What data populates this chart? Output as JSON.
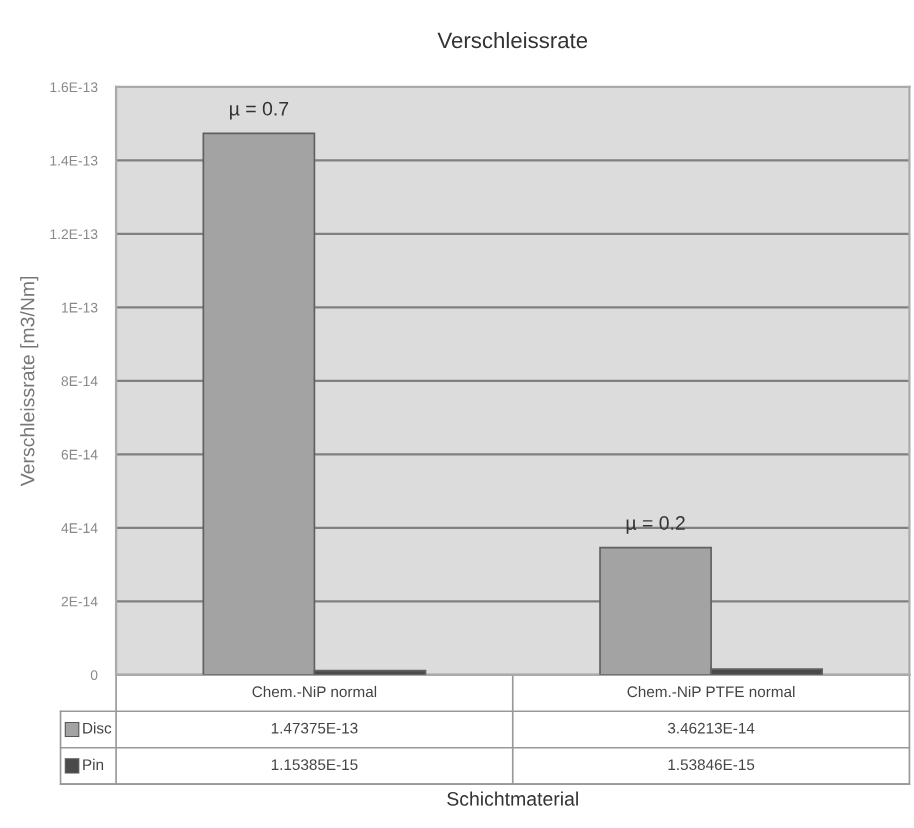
{
  "chart_data": {
    "type": "bar",
    "title": "Verschleissrate",
    "xlabel": "Schichtmaterial",
    "ylabel": "Verschleissrate [m3/Nm]",
    "categories": [
      "Chem.-NiP normal",
      "Chem.-NiP PTFE normal"
    ],
    "series": [
      {
        "name": "Disc",
        "color": "#a3a3a3",
        "values": [
          1.47375e-13,
          3.46213e-14
        ],
        "value_labels": [
          "1.47375E-13",
          "3.46213E-14"
        ]
      },
      {
        "name": "Pin",
        "color": "#4a4a4a",
        "values": [
          1.15385e-15,
          1.53846e-15
        ],
        "value_labels": [
          "1.15385E-15",
          "1.53846E-15"
        ]
      }
    ],
    "annotations": [
      {
        "text": "µ = 0.7",
        "x": "Chem.-NiP normal",
        "y": 1.47375e-13
      },
      {
        "text": "µ = 0.2",
        "x": "Chem.-NiP PTFE normal",
        "y": 3.46213e-14
      }
    ],
    "ylim": [
      0,
      1.6e-13
    ],
    "yticks": [
      0,
      {
        "value": 2e-14,
        "label": "2E-14"
      },
      {
        "value": 4e-14,
        "label": "4E-14"
      },
      {
        "value": 6e-14,
        "label": "6E-14"
      },
      {
        "value": 8e-14,
        "label": "8E-14"
      },
      {
        "value": 1e-13,
        "label": "1E-13"
      },
      {
        "value": 1.2e-13,
        "label": "1.2E-13"
      },
      {
        "value": 1.4e-13,
        "label": "1.4E-13"
      },
      {
        "value": 1.6e-13,
        "label": "1.6E-13"
      }
    ],
    "grid": "y",
    "legend": "bottom left"
  }
}
